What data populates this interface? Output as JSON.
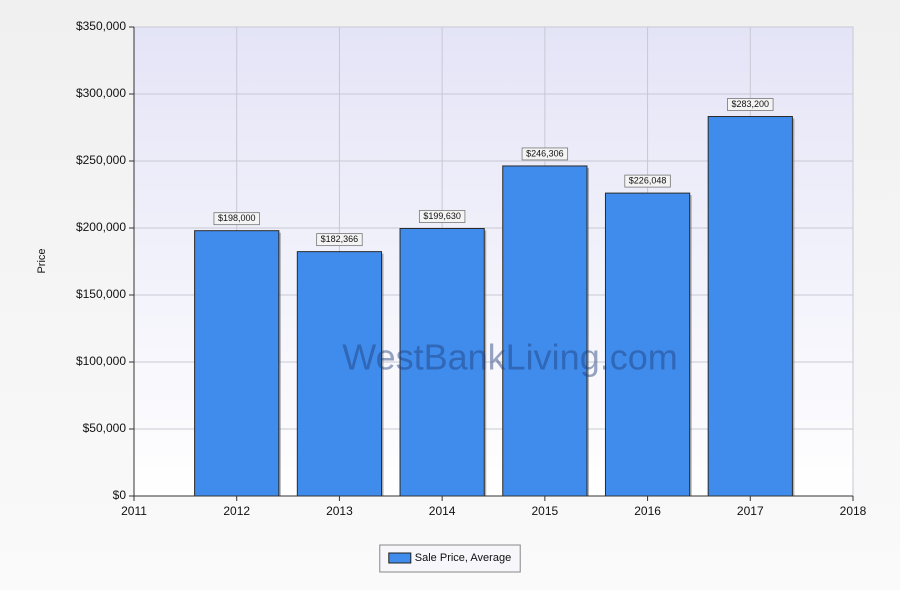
{
  "chart_data": {
    "type": "bar",
    "y_label": "Price",
    "watermark": "WestBankLiving.com",
    "x": [
      2012,
      2013,
      2014,
      2015,
      2016,
      2017
    ],
    "xlim": [
      2011,
      2018
    ],
    "xticks": [
      2011,
      2012,
      2013,
      2014,
      2015,
      2016,
      2017,
      2018
    ],
    "ylim": [
      0,
      350000
    ],
    "yticks": [
      {
        "value": 0,
        "label": "$0"
      },
      {
        "value": 50000,
        "label": "$50,000"
      },
      {
        "value": 100000,
        "label": "$100,000"
      },
      {
        "value": 150000,
        "label": "$150,000"
      },
      {
        "value": 200000,
        "label": "$200,000"
      },
      {
        "value": 250000,
        "label": "$250,000"
      },
      {
        "value": 300000,
        "label": "$300,000"
      },
      {
        "value": 350000,
        "label": "$350,000"
      }
    ],
    "grid": true,
    "legend": "bottom",
    "series": [
      {
        "name": "Sale Price, Average",
        "color": "#3f8ced",
        "values": [
          198000,
          182366,
          199630,
          246306,
          226048,
          283200
        ],
        "value_labels": [
          "$198,000",
          "$182,366",
          "$199,630",
          "$246,306",
          "$226,048",
          "$283,200"
        ]
      }
    ]
  }
}
